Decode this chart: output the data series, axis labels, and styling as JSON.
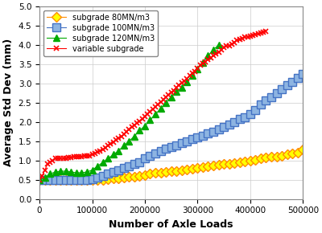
{
  "title": "",
  "xlabel": "Number of Axle Loads",
  "ylabel": "Average Std Dev (mm)",
  "xlim": [
    0,
    500000
  ],
  "ylim": [
    0,
    5
  ],
  "yticks": [
    0,
    0.5,
    1.0,
    1.5,
    2.0,
    2.5,
    3.0,
    3.5,
    4.0,
    4.5,
    5.0
  ],
  "xticks": [
    0,
    100000,
    200000,
    300000,
    400000,
    500000
  ],
  "series": [
    {
      "label": "subgrade 80MN/m3",
      "line_color": "#FF8C00",
      "marker_face": "#FFFF00",
      "marker_edge": "#FF8C00",
      "marker": "D",
      "markersize": 6,
      "x": [
        0,
        10000,
        20000,
        30000,
        40000,
        50000,
        60000,
        70000,
        80000,
        90000,
        100000,
        110000,
        120000,
        130000,
        140000,
        150000,
        160000,
        170000,
        180000,
        190000,
        200000,
        210000,
        220000,
        230000,
        240000,
        250000,
        260000,
        270000,
        280000,
        290000,
        300000,
        310000,
        320000,
        330000,
        340000,
        350000,
        360000,
        370000,
        380000,
        390000,
        400000,
        410000,
        420000,
        430000,
        440000,
        450000,
        460000,
        470000,
        480000,
        490000,
        500000
      ],
      "y": [
        0.5,
        0.5,
        0.5,
        0.5,
        0.5,
        0.5,
        0.5,
        0.5,
        0.5,
        0.5,
        0.5,
        0.5,
        0.5,
        0.52,
        0.53,
        0.53,
        0.55,
        0.57,
        0.58,
        0.6,
        0.62,
        0.65,
        0.67,
        0.68,
        0.7,
        0.72,
        0.73,
        0.75,
        0.76,
        0.78,
        0.8,
        0.82,
        0.84,
        0.86,
        0.88,
        0.9,
        0.92,
        0.94,
        0.96,
        0.98,
        1.0,
        1.02,
        1.05,
        1.07,
        1.09,
        1.1,
        1.12,
        1.15,
        1.18,
        1.2,
        1.28
      ]
    },
    {
      "label": "subgrade 100MN/m3",
      "line_color": "#4472C4",
      "marker_face": "#8DB4E2",
      "marker_edge": "#4472C4",
      "marker": "s",
      "markersize": 7,
      "x": [
        0,
        10000,
        20000,
        30000,
        40000,
        50000,
        60000,
        70000,
        80000,
        90000,
        100000,
        110000,
        120000,
        130000,
        140000,
        150000,
        160000,
        170000,
        180000,
        190000,
        200000,
        210000,
        220000,
        230000,
        240000,
        250000,
        260000,
        270000,
        280000,
        290000,
        300000,
        310000,
        320000,
        330000,
        340000,
        350000,
        360000,
        370000,
        380000,
        390000,
        400000,
        410000,
        420000,
        430000,
        440000,
        450000,
        460000,
        470000,
        480000,
        490000,
        500000
      ],
      "y": [
        0.5,
        0.5,
        0.5,
        0.5,
        0.5,
        0.5,
        0.5,
        0.5,
        0.5,
        0.5,
        0.52,
        0.55,
        0.6,
        0.65,
        0.7,
        0.75,
        0.8,
        0.85,
        0.9,
        0.95,
        1.05,
        1.12,
        1.18,
        1.25,
        1.3,
        1.35,
        1.4,
        1.45,
        1.5,
        1.55,
        1.6,
        1.65,
        1.7,
        1.75,
        1.8,
        1.87,
        1.93,
        2.0,
        2.07,
        2.12,
        2.2,
        2.3,
        2.45,
        2.55,
        2.65,
        2.75,
        2.85,
        2.95,
        3.05,
        3.15,
        3.25
      ]
    },
    {
      "label": "subgrade 120MN/m3",
      "line_color": "#00AA00",
      "marker_face": "#00AA00",
      "marker_edge": "#00AA00",
      "marker": "^",
      "markersize": 6,
      "x": [
        0,
        10000,
        20000,
        30000,
        40000,
        50000,
        60000,
        70000,
        80000,
        90000,
        100000,
        110000,
        120000,
        130000,
        140000,
        150000,
        160000,
        170000,
        180000,
        190000,
        200000,
        210000,
        220000,
        230000,
        240000,
        250000,
        260000,
        270000,
        280000,
        290000,
        300000,
        310000,
        320000,
        330000,
        340000
      ],
      "y": [
        0.5,
        0.55,
        0.65,
        0.7,
        0.72,
        0.72,
        0.7,
        0.68,
        0.68,
        0.7,
        0.75,
        0.85,
        0.95,
        1.05,
        1.15,
        1.25,
        1.38,
        1.5,
        1.63,
        1.78,
        1.9,
        2.05,
        2.2,
        2.35,
        2.5,
        2.65,
        2.78,
        2.9,
        3.05,
        3.2,
        3.38,
        3.55,
        3.72,
        3.88,
        4.0
      ]
    },
    {
      "label": "variable subgrade",
      "line_color": "#FF0000",
      "marker_face": "#FF0000",
      "marker_edge": "#FF0000",
      "marker": "x",
      "markersize": 4,
      "x": [
        0,
        5000,
        10000,
        15000,
        20000,
        25000,
        30000,
        35000,
        40000,
        45000,
        50000,
        55000,
        60000,
        65000,
        70000,
        75000,
        80000,
        85000,
        90000,
        95000,
        100000,
        105000,
        110000,
        115000,
        120000,
        125000,
        130000,
        135000,
        140000,
        145000,
        150000,
        155000,
        160000,
        165000,
        170000,
        175000,
        180000,
        185000,
        190000,
        195000,
        200000,
        205000,
        210000,
        215000,
        220000,
        225000,
        230000,
        235000,
        240000,
        245000,
        250000,
        255000,
        260000,
        265000,
        270000,
        275000,
        280000,
        285000,
        290000,
        295000,
        300000,
        305000,
        310000,
        315000,
        320000,
        325000,
        330000,
        335000,
        340000,
        345000,
        350000,
        355000,
        360000,
        365000,
        370000,
        375000,
        380000,
        385000,
        390000,
        395000,
        400000,
        405000,
        410000,
        415000,
        420000,
        425000,
        430000
      ],
      "y": [
        0.5,
        0.6,
        0.75,
        0.9,
        0.95,
        1.0,
        1.05,
        1.05,
        1.05,
        1.05,
        1.05,
        1.07,
        1.08,
        1.1,
        1.1,
        1.1,
        1.1,
        1.12,
        1.12,
        1.12,
        1.15,
        1.18,
        1.22,
        1.25,
        1.28,
        1.33,
        1.38,
        1.43,
        1.48,
        1.53,
        1.58,
        1.63,
        1.68,
        1.75,
        1.8,
        1.87,
        1.92,
        1.97,
        2.02,
        2.08,
        2.15,
        2.2,
        2.27,
        2.33,
        2.4,
        2.46,
        2.52,
        2.58,
        2.64,
        2.7,
        2.77,
        2.82,
        2.89,
        2.95,
        3.01,
        3.07,
        3.13,
        3.2,
        3.27,
        3.32,
        3.4,
        3.47,
        3.53,
        3.57,
        3.62,
        3.67,
        3.72,
        3.77,
        3.82,
        3.87,
        3.93,
        3.97,
        3.99,
        4.02,
        4.07,
        4.12,
        4.14,
        4.17,
        4.2,
        4.22,
        4.24,
        4.26,
        4.28,
        4.3,
        4.32,
        4.33,
        4.35
      ]
    }
  ],
  "legend_loc": "upper left",
  "grid": true,
  "background_color": "#FFFFFF",
  "xlabel_fontsize": 9,
  "ylabel_fontsize": 9,
  "tick_fontsize": 7.5,
  "legend_fontsize": 7.0
}
